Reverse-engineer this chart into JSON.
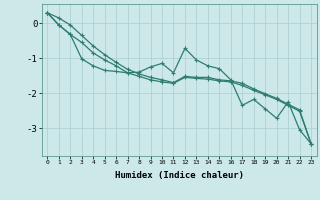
{
  "xlabel": "Humidex (Indice chaleur)",
  "x_values": [
    0,
    1,
    2,
    3,
    4,
    5,
    6,
    7,
    8,
    9,
    10,
    11,
    12,
    13,
    14,
    15,
    16,
    17,
    18,
    19,
    20,
    21,
    22,
    23
  ],
  "line1_y": [
    0.3,
    -0.05,
    -0.32,
    -1.02,
    -1.22,
    -1.35,
    -1.38,
    -1.42,
    -1.4,
    -1.25,
    -1.15,
    -1.42,
    -0.72,
    -1.05,
    -1.22,
    -1.3,
    -1.62,
    -2.35,
    -2.18,
    -2.45,
    -2.72,
    -2.25,
    -3.05,
    -3.45
  ],
  "line2_y": [
    0.3,
    0.15,
    -0.05,
    -0.35,
    -0.65,
    -0.9,
    -1.12,
    -1.32,
    -1.45,
    -1.55,
    -1.62,
    -1.7,
    -1.52,
    -1.55,
    -1.55,
    -1.62,
    -1.65,
    -1.72,
    -1.88,
    -2.02,
    -2.15,
    -2.32,
    -2.48,
    -3.45
  ],
  "line3_y": [
    0.3,
    -0.05,
    -0.32,
    -0.55,
    -0.85,
    -1.05,
    -1.22,
    -1.42,
    -1.52,
    -1.62,
    -1.68,
    -1.72,
    -1.55,
    -1.58,
    -1.6,
    -1.65,
    -1.68,
    -1.78,
    -1.92,
    -2.05,
    -2.18,
    -2.35,
    -2.52,
    -3.45
  ],
  "line_color": "#2e7d6e",
  "bg_color": "#cce8e8",
  "plot_bg_color": "#cce8e8",
  "grid_color": "#aacece",
  "ylim": [
    -3.8,
    0.55
  ],
  "xlim": [
    -0.5,
    23.5
  ],
  "yticks": [
    0,
    -1,
    -2,
    -3
  ],
  "xticks": [
    0,
    1,
    2,
    3,
    4,
    5,
    6,
    7,
    8,
    9,
    10,
    11,
    12,
    13,
    14,
    15,
    16,
    17,
    18,
    19,
    20,
    21,
    22,
    23
  ],
  "marker_size": 2.5,
  "line_width": 0.9
}
